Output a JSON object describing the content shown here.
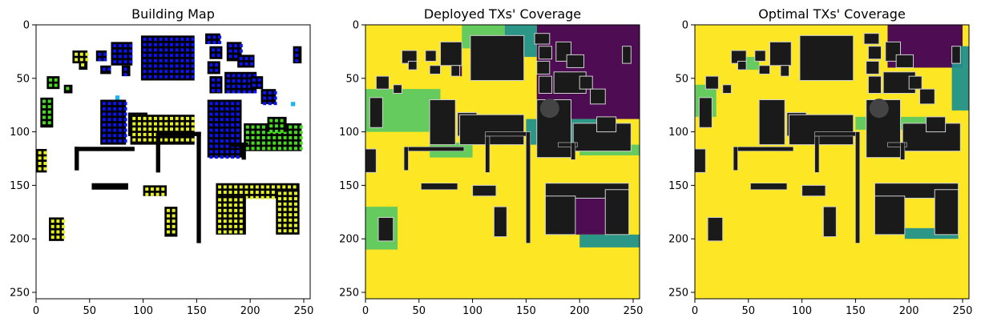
{
  "figure": {
    "panels": [
      {
        "title": "Building Map",
        "kind": "building-map"
      },
      {
        "title": "Deployed TXs' Coverage",
        "kind": "coverage"
      },
      {
        "title": "Optimal TXs' Coverage",
        "kind": "coverage"
      }
    ]
  },
  "chart_data": [
    {
      "type": "heatmap",
      "title": "Building Map",
      "xlim": [
        0,
        256
      ],
      "ylim": [
        256,
        0
      ],
      "xticks": [
        0,
        50,
        100,
        150,
        200,
        250
      ],
      "yticks": [
        0,
        50,
        100,
        150,
        200,
        250
      ],
      "grid": false,
      "colors": {
        "background": "#ffffff",
        "building": "#000000",
        "tx_blue": "#0a14f0",
        "tx_yellow": "#e6f01e",
        "tx_green": "#46dc1e",
        "tx_cyan": "#1eb4f0"
      }
    },
    {
      "type": "heatmap",
      "title": "Deployed TXs' Coverage",
      "xlim": [
        0,
        256
      ],
      "ylim": [
        256,
        0
      ],
      "xticks": [
        0,
        50,
        100,
        150,
        200,
        250
      ],
      "yticks": [
        0,
        50,
        100,
        150,
        200,
        250
      ],
      "grid": false,
      "colors": {
        "covered": "#fde725",
        "partial_high": "#5ec962",
        "partial_low": "#21918c",
        "uncovered": "#440154",
        "building": "#1a1a1a"
      }
    },
    {
      "type": "heatmap",
      "title": "Optimal TXs' Coverage",
      "xlim": [
        0,
        256
      ],
      "ylim": [
        256,
        0
      ],
      "xticks": [
        0,
        50,
        100,
        150,
        200,
        250
      ],
      "yticks": [
        0,
        50,
        100,
        150,
        200,
        250
      ],
      "grid": false,
      "colors": {
        "covered": "#fde725",
        "partial_high": "#5ec962",
        "partial_low": "#21918c",
        "uncovered": "#440154",
        "building": "#1a1a1a"
      }
    }
  ]
}
